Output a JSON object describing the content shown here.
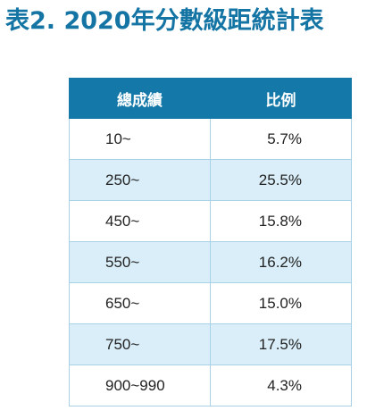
{
  "title": "表2. 2020年分數級距統計表",
  "table": {
    "headers": [
      "總成績",
      "比例"
    ],
    "rows": [
      {
        "score": "10~",
        "percent": "5.7%"
      },
      {
        "score": "250~",
        "percent": "25.5%"
      },
      {
        "score": "450~",
        "percent": "15.8%"
      },
      {
        "score": "550~",
        "percent": "16.2%"
      },
      {
        "score": "650~",
        "percent": "15.0%"
      },
      {
        "score": "750~",
        "percent": "17.5%"
      },
      {
        "score": "900~990",
        "percent": "4.3%"
      }
    ]
  },
  "colors": {
    "title": "#1474a4",
    "header_bg": "#1478a8",
    "alt_row_bg": "#d9eef8",
    "border": "#a9d1e6"
  }
}
